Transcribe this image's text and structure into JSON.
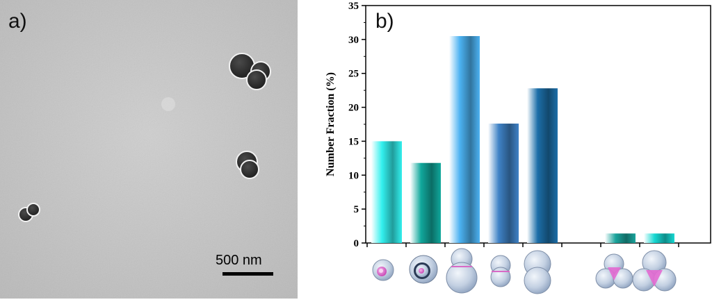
{
  "panel_a": {
    "label": "a)",
    "scale_bar_text": "500 nm"
  },
  "panel_b": {
    "label": "b)"
  },
  "chart_data": {
    "type": "bar",
    "title": "",
    "xlabel": "",
    "ylabel": "Number Fraction (%)",
    "ylim": [
      0,
      35
    ],
    "yticks": [
      0,
      5,
      10,
      15,
      20,
      25,
      30,
      35
    ],
    "grid": false,
    "categories": [
      "single-sphere-core-shell",
      "single-sphere-thick-shell",
      "dimer-large-small",
      "dimer-equal-small",
      "dimer-equal-large",
      "",
      "trimer-small",
      "trimer-large"
    ],
    "values": [
      15.0,
      11.8,
      30.5,
      17.6,
      22.8,
      null,
      1.4,
      1.4
    ],
    "bar_colors": [
      "#33f0ee",
      "#11a89c",
      "#4cb2f2",
      "#3f82c6",
      "#1c6ea8",
      null,
      "#1aa49c",
      "#16d8d2"
    ]
  }
}
